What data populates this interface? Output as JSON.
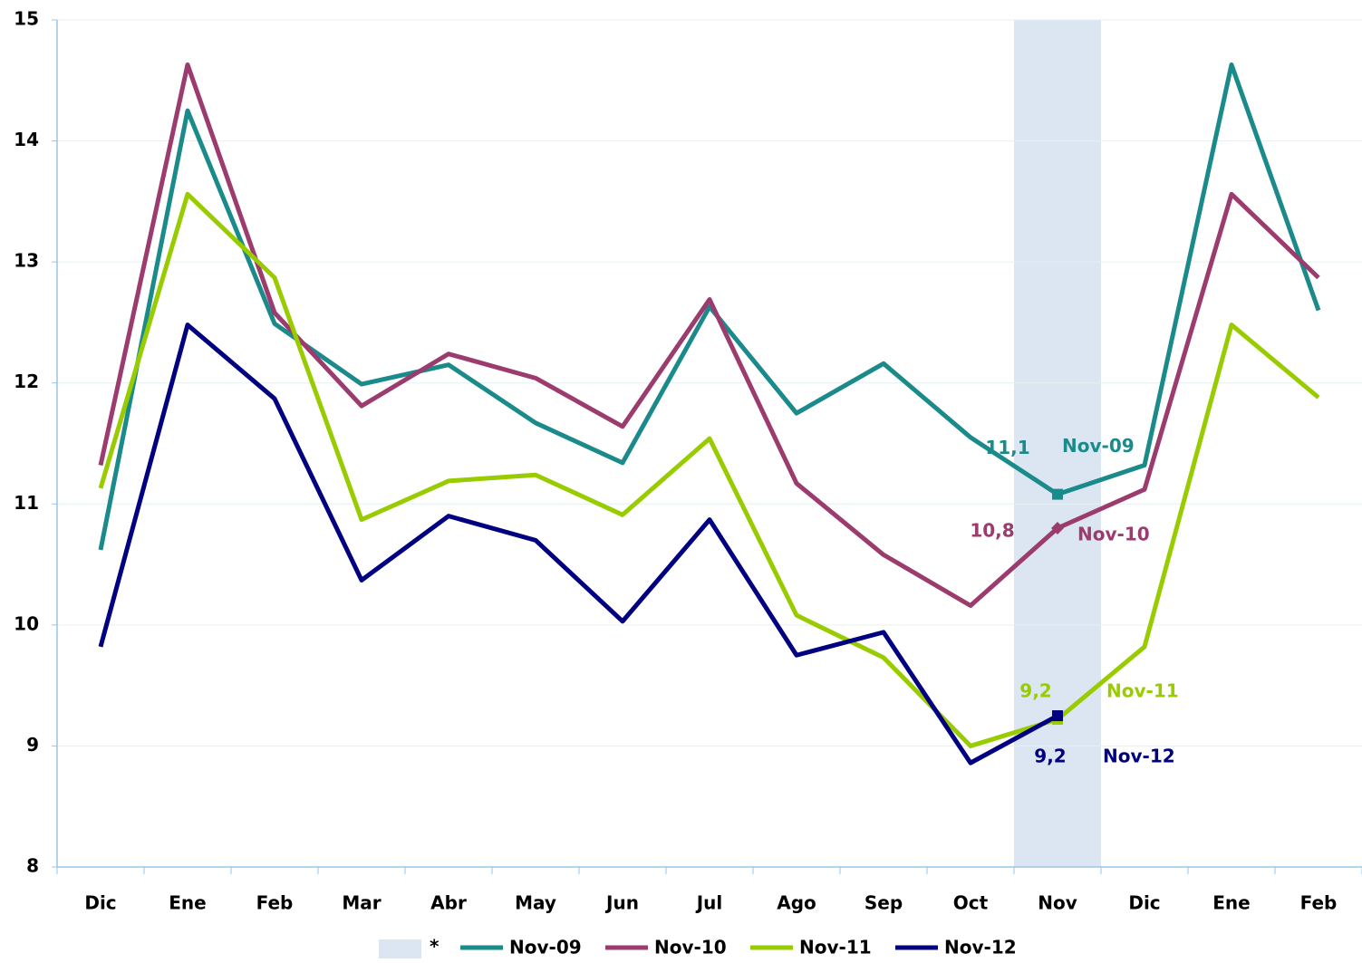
{
  "chart_data": {
    "type": "line",
    "categories": [
      "Dic",
      "Ene",
      "Feb",
      "Mar",
      "Abr",
      "May",
      "Jun",
      "Jul",
      "Ago",
      "Sep",
      "Oct",
      "Nov",
      "Dic",
      "Ene",
      "Feb"
    ],
    "series": [
      {
        "name": "Nov-09",
        "color": "#1a8a8a",
        "values": [
          10.62,
          14.25,
          12.49,
          11.99,
          12.15,
          11.67,
          11.34,
          12.63,
          11.75,
          12.16,
          11.55,
          11.08,
          11.32,
          14.63,
          12.6
        ],
        "value_labels": [
          null,
          null,
          null,
          null,
          null,
          null,
          null,
          null,
          null,
          null,
          null,
          "11,1",
          null,
          null,
          null
        ]
      },
      {
        "name": "Nov-10",
        "color": "#9b3b6e",
        "values": [
          11.32,
          14.63,
          12.58,
          11.81,
          12.24,
          12.04,
          11.64,
          12.69,
          11.17,
          10.58,
          10.16,
          10.8,
          11.12,
          13.56,
          12.87
        ],
        "value_labels": [
          null,
          null,
          null,
          null,
          null,
          null,
          null,
          null,
          null,
          null,
          null,
          "10,8",
          null,
          null,
          null
        ]
      },
      {
        "name": "Nov-11",
        "color": "#99cc00",
        "values": [
          11.13,
          13.56,
          12.87,
          10.87,
          11.19,
          11.24,
          10.91,
          11.54,
          10.08,
          9.73,
          9.0,
          9.22,
          9.82,
          12.48,
          11.88
        ],
        "value_labels": [
          null,
          null,
          null,
          null,
          null,
          null,
          null,
          null,
          null,
          null,
          null,
          "9,2",
          null,
          null,
          null
        ]
      },
      {
        "name": "Nov-12",
        "color": "#000080",
        "values": [
          9.82,
          12.48,
          11.87,
          10.37,
          10.9,
          10.7,
          10.03,
          10.87,
          9.75,
          9.94,
          8.86,
          9.25,
          null,
          null,
          null
        ],
        "value_labels": [
          null,
          null,
          null,
          null,
          null,
          null,
          null,
          null,
          null,
          null,
          null,
          "9,2",
          null,
          null,
          null
        ]
      }
    ],
    "highlight": {
      "label": "*",
      "category": "Nov",
      "color": "#dce6f2"
    },
    "ylim": [
      8,
      15
    ],
    "yticks": [
      8,
      9,
      10,
      11,
      12,
      13,
      14,
      15
    ],
    "grid": true
  }
}
